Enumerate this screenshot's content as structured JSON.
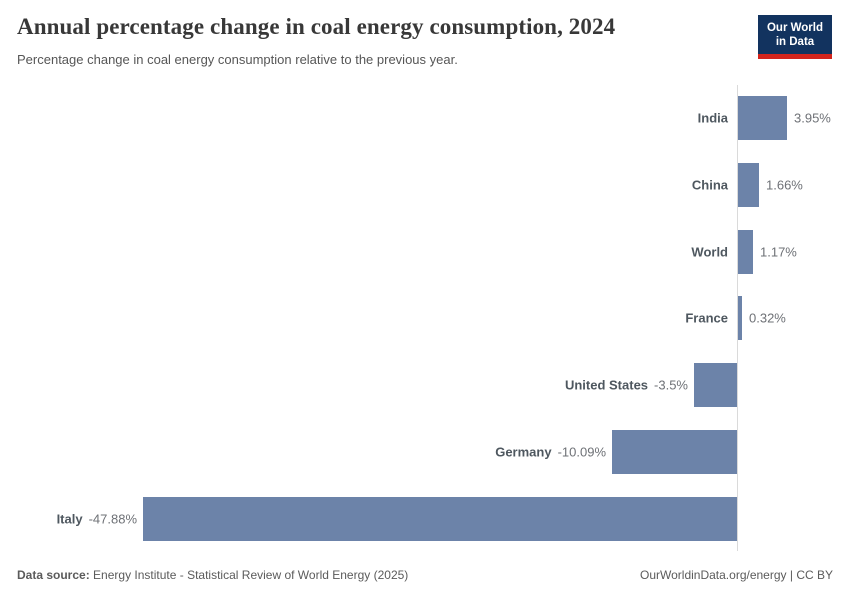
{
  "header": {
    "title": "Annual percentage change in coal energy consumption, 2024",
    "subtitle": "Percentage change in coal energy consumption relative to the previous year."
  },
  "logo": {
    "line1": "Our World",
    "line2": "in Data",
    "bg_color": "#12335f",
    "accent_color": "#d3241c"
  },
  "chart_data": {
    "type": "bar",
    "orientation": "horizontal",
    "title": "Annual percentage change in coal energy consumption, 2024",
    "xlabel": "",
    "ylabel": "",
    "categories": [
      "India",
      "China",
      "World",
      "France",
      "United States",
      "Germany",
      "Italy"
    ],
    "values": [
      3.95,
      1.66,
      1.17,
      0.32,
      -3.5,
      -10.09,
      -47.88
    ],
    "value_labels": [
      "3.95%",
      "1.66%",
      "1.17%",
      "0.32%",
      "-3.5%",
      "-10.09%",
      "-47.88%"
    ],
    "xlim": [
      -47.88,
      3.95
    ],
    "grid": false,
    "legend": false,
    "bar_color": "#6c83a9",
    "axis_line_color": "#dadada"
  },
  "footer": {
    "source_label": "Data source:",
    "source_text": "Energy Institute - Statistical Review of World Energy (2025)",
    "link_text": "OurWorldinData.org/energy",
    "separator": " | ",
    "license_text": "CC BY"
  }
}
